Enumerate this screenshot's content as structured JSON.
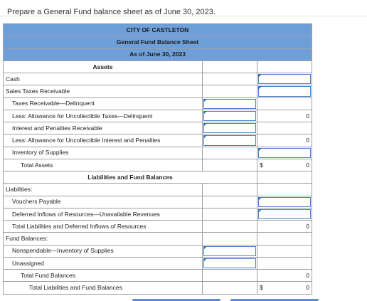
{
  "instruction": "Prepare a General Fund balance sheet as of June 30, 2023.",
  "header": {
    "entity": "CITY OF CASTLETON",
    "statement": "General Fund Balance Sheet",
    "date": "As of June 30, 2023"
  },
  "sections": {
    "assets": "Assets",
    "liabilities_fund_balances": "Liabilities and Fund Balances"
  },
  "rows": {
    "cash": "Cash",
    "sales_taxes_receivable": "Sales Taxes Receivable",
    "taxes_receivable_delinquent": "Taxes Receivable—Delinquent",
    "allowance_taxes": "Less: Allowance for Uncollectible Taxes—Delinquent",
    "allowance_taxes_value": "0",
    "interest_penalties_receivable": "Interest and Penalties Receivable",
    "allowance_interest": "Less: Allowance for Uncollectible Interest and Penalties",
    "allowance_interest_value": "0",
    "inventory_supplies": "Inventory of Supplies",
    "total_assets": "Total Assets",
    "total_assets_currency": "$",
    "total_assets_value": "0",
    "liabilities": "Liabilities:",
    "vouchers_payable": "Vouchers Payable",
    "deferred_inflows": "Deferred Inflows of Resources—Unavailable Revenues",
    "total_liab_deferred": "Total Liabilities and Deferred Inflows of Resources",
    "total_liab_deferred_value": "0",
    "fund_balances": "Fund Balances:",
    "nonspendable_inventory": "Nonspendable—Inventory of Supplies",
    "unassigned": "Unassigned",
    "total_fund_balances": "Total Fund Balances",
    "total_fund_balances_value": "0",
    "total_liab_fund_balances": "Total Liabilities and Fund Balances",
    "total_liab_fund_balances_currency": "$",
    "total_liab_fund_balances_value": "0"
  },
  "colors": {
    "header_background": "#6f9fd8",
    "input_border": "#4a7fc9",
    "input_marker": "#2e6db4",
    "grid_border": "#9aa0a6"
  }
}
